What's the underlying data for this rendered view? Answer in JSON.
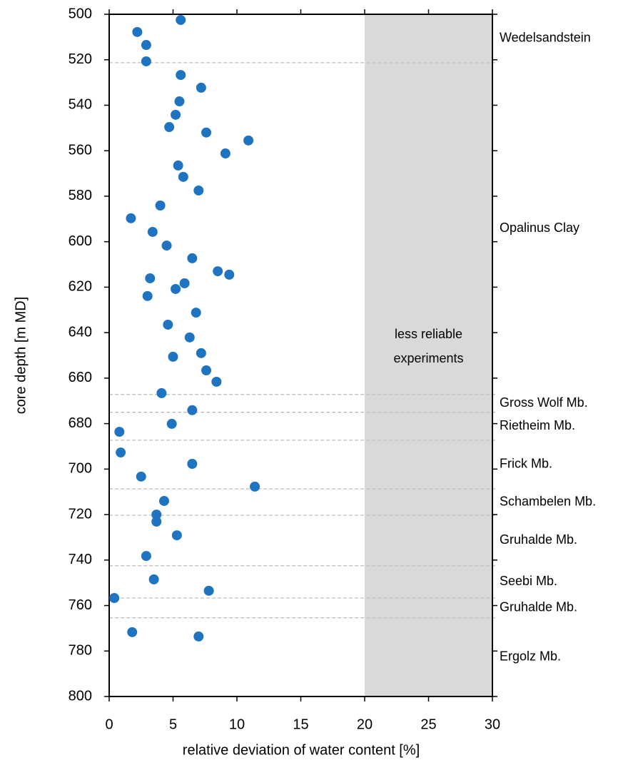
{
  "chart_data": {
    "type": "scatter",
    "x_label": "relative deviation of water content [%]",
    "y_label": "core depth [m MD]",
    "color": "#1f74c1",
    "x": [
      5.6,
      2.2,
      2.9,
      2.9,
      5.6,
      7.2,
      5.5,
      5.2,
      4.7,
      7.6,
      10.9,
      9.1,
      5.4,
      5.8,
      7.0,
      4.0,
      1.7,
      3.4,
      4.5,
      6.5,
      8.5,
      9.4,
      3.2,
      5.9,
      5.2,
      3.0,
      6.8,
      4.6,
      6.3,
      7.2,
      5.0,
      7.6,
      8.4,
      4.1,
      6.5,
      4.9,
      0.8,
      0.9,
      6.5,
      2.5,
      11.4,
      4.3,
      3.7,
      3.7,
      5.3,
      2.9,
      3.5,
      7.8,
      0.4,
      1.8,
      7.0
    ],
    "values": [
      502.5,
      507.8,
      513.5,
      520.7,
      526.7,
      532.3,
      538.3,
      544.2,
      549.6,
      552,
      555.5,
      561.2,
      566.5,
      571.5,
      577.5,
      584.1,
      589.7,
      595.7,
      601.7,
      607.3,
      613,
      614.5,
      616.1,
      618.3,
      620.8,
      623.9,
      631.2,
      636.5,
      642.1,
      649,
      650.6,
      656.6,
      661.6,
      666.6,
      674.1,
      680.1,
      683.6,
      692.7,
      697.7,
      703.3,
      707.7,
      714,
      720,
      723.1,
      729.1,
      738.2,
      748.5,
      753.5,
      756.7,
      771.7,
      773.6
    ],
    "xlim": [
      0,
      30
    ],
    "xticks": [
      0,
      5,
      10,
      15,
      20,
      25,
      30
    ],
    "ylim": [
      500,
      800
    ],
    "yticks": [
      500,
      520,
      540,
      560,
      580,
      600,
      620,
      640,
      660,
      680,
      700,
      720,
      740,
      760,
      780,
      800
    ],
    "y_inverted": true,
    "shaded_region": [
      20,
      30
    ],
    "shade_color": "#d9d9d9",
    "annotation": [
      "less reliable",
      "experiments"
    ],
    "boundaries": [
      521.3,
      667.2,
      675,
      687.3,
      708.7,
      720.3,
      742.5,
      756.7,
      765.4
    ],
    "units": [
      "Wedelsandstein",
      "Opalinus Clay",
      "Gross Wolf Mb.",
      "Rietheim Mb.",
      "Frick Mb.",
      "Schambelen Mb.",
      "Gruhalde Mb.",
      "Seebi Mb.",
      "Gruhalde Mb.",
      "Ergolz Mb."
    ]
  }
}
